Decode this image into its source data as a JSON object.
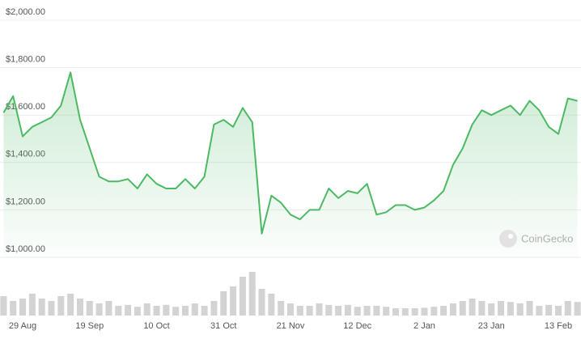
{
  "chart_data": {
    "type": "line",
    "categories": [
      null,
      null,
      "29 Aug",
      null,
      null,
      null,
      null,
      null,
      null,
      "19 Sep",
      null,
      null,
      null,
      null,
      null,
      null,
      "10 Oct",
      null,
      null,
      null,
      null,
      null,
      null,
      "31 Oct",
      null,
      null,
      null,
      null,
      null,
      null,
      "21 Nov",
      null,
      null,
      null,
      null,
      null,
      null,
      "12 Dec",
      null,
      null,
      null,
      null,
      null,
      null,
      "2 Jan",
      null,
      null,
      null,
      null,
      null,
      null,
      "23 Jan",
      null,
      null,
      null,
      null,
      null,
      null,
      "13 Feb",
      null,
      null
    ],
    "series": [
      {
        "type": "line",
        "color": "#4cb963",
        "values": [
          1610,
          1680,
          1510,
          1550,
          1570,
          1590,
          1640,
          1780,
          1580,
          1460,
          1340,
          1320,
          1320,
          1330,
          1290,
          1350,
          1310,
          1290,
          1290,
          1330,
          1290,
          1340,
          1560,
          1580,
          1550,
          1630,
          1570,
          1100,
          1260,
          1230,
          1180,
          1160,
          1200,
          1200,
          1290,
          1250,
          1280,
          1270,
          1310,
          1180,
          1190,
          1220,
          1220,
          1200,
          1210,
          1240,
          1280,
          1390,
          1460,
          1560,
          1620,
          1600,
          1620,
          1640,
          1600,
          1660,
          1620,
          1550,
          1520,
          1670,
          1660
        ]
      },
      {
        "type": "bar",
        "axis": "y2",
        "color": "#d3d3d3",
        "values": [
          40,
          30,
          35,
          45,
          35,
          30,
          40,
          45,
          35,
          30,
          25,
          30,
          20,
          22,
          18,
          25,
          20,
          22,
          18,
          20,
          25,
          20,
          30,
          50,
          60,
          80,
          90,
          55,
          45,
          30,
          25,
          20,
          20,
          25,
          22,
          20,
          22,
          18,
          20,
          20,
          18,
          15,
          15,
          15,
          16,
          18,
          20,
          25,
          30,
          35,
          30,
          25,
          30,
          28,
          25,
          30,
          20,
          22,
          20,
          30,
          28
        ]
      }
    ],
    "ylim": [
      1000,
      2000
    ],
    "yticks": [
      {
        "value": 1000,
        "label": "$1,000.00"
      },
      {
        "value": 1200,
        "label": "$1,200.00"
      },
      {
        "value": 1400,
        "label": "$1,400.00"
      },
      {
        "value": 1600,
        "label": "$1,600.00"
      },
      {
        "value": 1800,
        "label": "$1,800.00"
      },
      {
        "value": 2000,
        "label": "$2,000.00"
      }
    ],
    "y2lim": [
      0,
      100
    ],
    "grid": true,
    "watermark": "CoinGecko"
  }
}
